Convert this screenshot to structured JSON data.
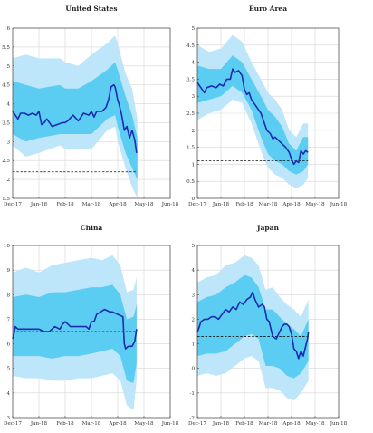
{
  "chart_data": [
    {
      "type": "line",
      "title": "United States",
      "x_ticks": [
        "Dec-17",
        "Jan-18",
        "Feb-18",
        "Mar-18",
        "Apr-18",
        "May-18",
        "Jun-18"
      ],
      "y_ticks": [
        "1.5",
        "2",
        "2.5",
        "3",
        "3.5",
        "4",
        "4.5",
        "5",
        "5.5",
        "6"
      ],
      "ylim": [
        1.5,
        6
      ],
      "grid": true,
      "reference_value": 2.2,
      "bands": {
        "x": [
          0,
          0.5,
          1.0,
          1.8,
          2.0,
          2.5,
          3.0,
          3.6,
          3.9,
          4.0,
          4.3,
          4.55,
          4.75
        ],
        "outer": [
          [
            2.9,
            5.2
          ],
          [
            2.6,
            5.3
          ],
          [
            2.7,
            5.2
          ],
          [
            2.9,
            5.2
          ],
          [
            2.8,
            5.1
          ],
          [
            2.8,
            5.0
          ],
          [
            2.8,
            5.3
          ],
          [
            3.3,
            5.6
          ],
          [
            3.4,
            5.8
          ],
          [
            3.0,
            5.6
          ],
          [
            2.3,
            4.8
          ],
          [
            1.8,
            4.4
          ],
          [
            1.5,
            3.6
          ]
        ],
        "inner": [
          [
            3.2,
            4.6
          ],
          [
            3.0,
            4.5
          ],
          [
            3.1,
            4.4
          ],
          [
            3.2,
            4.5
          ],
          [
            3.2,
            4.4
          ],
          [
            3.2,
            4.4
          ],
          [
            3.2,
            4.6
          ],
          [
            3.6,
            4.9
          ],
          [
            3.7,
            5.1
          ],
          [
            3.4,
            4.9
          ],
          [
            2.7,
            4.2
          ],
          [
            2.3,
            3.7
          ],
          [
            2.0,
            3.1
          ]
        ]
      },
      "series": [
        {
          "x": [
            0,
            0.1,
            0.2,
            0.3,
            0.45,
            0.6,
            0.75,
            0.9,
            1.0,
            1.1,
            1.2,
            1.3,
            1.5,
            1.7,
            1.9,
            2.0,
            2.1,
            2.3,
            2.5,
            2.7,
            2.9,
            3.0,
            3.1,
            3.2,
            3.4,
            3.55,
            3.65,
            3.75,
            3.85,
            3.9,
            4.0,
            4.05,
            4.15,
            4.25,
            4.35,
            4.45,
            4.55,
            4.65,
            4.72
          ],
          "y": [
            3.8,
            3.7,
            3.6,
            3.75,
            3.75,
            3.7,
            3.75,
            3.7,
            3.8,
            3.45,
            3.5,
            3.6,
            3.4,
            3.45,
            3.5,
            3.5,
            3.55,
            3.7,
            3.55,
            3.75,
            3.7,
            3.8,
            3.65,
            3.8,
            3.8,
            3.9,
            4.1,
            4.45,
            4.5,
            4.45,
            4.1,
            4.0,
            3.7,
            3.3,
            3.4,
            3.1,
            3.3,
            3.05,
            2.7
          ]
        }
      ]
    },
    {
      "type": "line",
      "title": "Euro Area",
      "x_ticks": [
        "Dec-17",
        "Jan-18",
        "Feb-18",
        "Mar-18",
        "Apr-18",
        "May-18",
        "Jun-18"
      ],
      "y_ticks": [
        "0",
        "0.5",
        "1",
        "1.5",
        "2",
        "2.5",
        "3",
        "3.5",
        "4",
        "4.5",
        "5"
      ],
      "ylim": [
        0,
        5
      ],
      "grid": true,
      "reference_value": 1.1,
      "bands": {
        "x": [
          0,
          0.5,
          1.0,
          1.5,
          1.9,
          2.3,
          2.7,
          3.0,
          3.3,
          3.6,
          3.9,
          4.2,
          4.5,
          4.7
        ],
        "outer": [
          [
            2.3,
            4.5
          ],
          [
            2.5,
            4.3
          ],
          [
            2.6,
            4.4
          ],
          [
            2.9,
            4.8
          ],
          [
            2.8,
            4.6
          ],
          [
            2.2,
            4.0
          ],
          [
            1.4,
            3.5
          ],
          [
            0.9,
            3.1
          ],
          [
            0.7,
            2.9
          ],
          [
            0.6,
            2.6
          ],
          [
            0.4,
            2.0
          ],
          [
            0.3,
            1.8
          ],
          [
            0.4,
            2.2
          ],
          [
            0.6,
            2.2
          ]
        ],
        "inner": [
          [
            2.8,
            3.9
          ],
          [
            2.9,
            3.8
          ],
          [
            3.0,
            3.8
          ],
          [
            3.3,
            4.2
          ],
          [
            3.1,
            4.0
          ],
          [
            2.6,
            3.5
          ],
          [
            1.8,
            3.0
          ],
          [
            1.3,
            2.6
          ],
          [
            1.1,
            2.4
          ],
          [
            1.0,
            2.1
          ],
          [
            0.8,
            1.6
          ],
          [
            0.7,
            1.4
          ],
          [
            0.8,
            1.8
          ],
          [
            1.0,
            1.8
          ]
        ]
      },
      "series": [
        {
          "x": [
            0,
            0.1,
            0.2,
            0.3,
            0.4,
            0.6,
            0.8,
            0.95,
            1.1,
            1.25,
            1.4,
            1.5,
            1.6,
            1.75,
            1.9,
            2.0,
            2.1,
            2.2,
            2.3,
            2.45,
            2.6,
            2.7,
            2.8,
            2.95,
            3.1,
            3.2,
            3.3,
            3.45,
            3.6,
            3.75,
            3.9,
            4.0,
            4.1,
            4.2,
            4.3,
            4.4,
            4.5,
            4.6,
            4.7
          ],
          "y": [
            3.4,
            3.3,
            3.2,
            3.1,
            3.25,
            3.3,
            3.25,
            3.35,
            3.3,
            3.5,
            3.5,
            3.8,
            3.7,
            3.75,
            3.6,
            3.2,
            3.05,
            3.1,
            2.9,
            2.75,
            2.6,
            2.5,
            2.3,
            2.0,
            1.9,
            1.75,
            1.8,
            1.7,
            1.6,
            1.5,
            1.35,
            1.15,
            1.0,
            1.1,
            1.05,
            1.4,
            1.3,
            1.4,
            1.35
          ]
        }
      ]
    },
    {
      "type": "line",
      "title": "China",
      "x_ticks": [
        "Dec-17",
        "Jan-18",
        "Feb-18",
        "Mar-18",
        "Apr-18",
        "May-18",
        "Jun-18"
      ],
      "y_ticks": [
        "3",
        "4",
        "5",
        "6",
        "7",
        "8",
        "9",
        "10"
      ],
      "ylim": [
        3,
        10
      ],
      "grid": true,
      "reference_value": 6.5,
      "bands": {
        "x": [
          0,
          0.5,
          1.0,
          1.5,
          2.0,
          2.5,
          3.0,
          3.4,
          3.8,
          4.1,
          4.35,
          4.6,
          4.72
        ],
        "outer": [
          [
            4.7,
            8.9
          ],
          [
            4.6,
            9.1
          ],
          [
            4.6,
            8.9
          ],
          [
            4.5,
            9.2
          ],
          [
            4.5,
            9.3
          ],
          [
            4.6,
            9.4
          ],
          [
            4.6,
            9.5
          ],
          [
            4.7,
            9.4
          ],
          [
            4.8,
            9.6
          ],
          [
            4.5,
            9.2
          ],
          [
            3.5,
            8.1
          ],
          [
            3.3,
            8.2
          ],
          [
            4.5,
            8.7
          ]
        ],
        "inner": [
          [
            5.5,
            7.9
          ],
          [
            5.5,
            8.0
          ],
          [
            5.5,
            7.9
          ],
          [
            5.4,
            8.1
          ],
          [
            5.5,
            8.1
          ],
          [
            5.5,
            8.2
          ],
          [
            5.6,
            8.3
          ],
          [
            5.7,
            8.3
          ],
          [
            5.8,
            8.4
          ],
          [
            5.5,
            8.0
          ],
          [
            4.5,
            7.0
          ],
          [
            4.4,
            7.1
          ],
          [
            5.2,
            7.6
          ]
        ]
      },
      "series": [
        {
          "x": [
            0,
            0.05,
            0.1,
            0.2,
            0.4,
            0.6,
            0.8,
            1.0,
            1.2,
            1.4,
            1.6,
            1.8,
            1.9,
            2.0,
            2.2,
            2.4,
            2.6,
            2.8,
            2.9,
            3.0,
            3.1,
            3.2,
            3.35,
            3.5,
            3.6,
            3.7,
            3.8,
            4.0,
            4.2,
            4.25,
            4.3,
            4.4,
            4.55,
            4.65,
            4.72
          ],
          "y": [
            6.2,
            6.4,
            6.7,
            6.6,
            6.6,
            6.6,
            6.6,
            6.6,
            6.5,
            6.5,
            6.7,
            6.6,
            6.8,
            6.9,
            6.7,
            6.7,
            6.7,
            6.7,
            6.6,
            6.9,
            6.9,
            7.2,
            7.3,
            7.4,
            7.35,
            7.3,
            7.3,
            7.2,
            7.1,
            6.0,
            5.8,
            5.9,
            5.9,
            6.1,
            6.6
          ]
        }
      ]
    },
    {
      "type": "line",
      "title": "Japan",
      "x_ticks": [
        "Dec-17",
        "Jan-18",
        "Feb-18",
        "Mar-18",
        "Apr-18",
        "May-18",
        "Jun-18"
      ],
      "y_ticks": [
        "-2",
        "-1",
        "0",
        "1",
        "2",
        "3",
        "4",
        "5"
      ],
      "ylim": [
        -2,
        5
      ],
      "grid": true,
      "reference_value": 1.3,
      "bands": {
        "x": [
          0,
          0.4,
          0.8,
          1.2,
          1.6,
          2.0,
          2.3,
          2.6,
          2.9,
          3.2,
          3.5,
          3.8,
          4.1,
          4.4,
          4.72
        ],
        "outer": [
          [
            -0.3,
            3.5
          ],
          [
            -0.2,
            3.7
          ],
          [
            -0.3,
            3.8
          ],
          [
            -0.2,
            4.2
          ],
          [
            0.1,
            4.3
          ],
          [
            0.4,
            4.6
          ],
          [
            0.5,
            4.5
          ],
          [
            0.3,
            4.2
          ],
          [
            -0.8,
            3.2
          ],
          [
            -0.8,
            3.3
          ],
          [
            -0.9,
            2.9
          ],
          [
            -1.2,
            2.6
          ],
          [
            -1.3,
            2.4
          ],
          [
            -1.0,
            2.1
          ],
          [
            -0.5,
            2.8
          ]
        ],
        "inner": [
          [
            0.5,
            2.7
          ],
          [
            0.6,
            2.9
          ],
          [
            0.6,
            3.0
          ],
          [
            0.7,
            3.3
          ],
          [
            1.0,
            3.5
          ],
          [
            1.3,
            3.8
          ],
          [
            1.4,
            3.7
          ],
          [
            1.2,
            3.3
          ],
          [
            0.1,
            2.4
          ],
          [
            0.1,
            2.4
          ],
          [
            0.0,
            2.1
          ],
          [
            -0.3,
            1.8
          ],
          [
            -0.4,
            1.6
          ],
          [
            -0.2,
            1.3
          ],
          [
            0.3,
            2.0
          ]
        ]
      },
      "series": [
        {
          "x": [
            0,
            0.05,
            0.15,
            0.3,
            0.45,
            0.6,
            0.75,
            0.9,
            1.05,
            1.2,
            1.35,
            1.5,
            1.65,
            1.8,
            1.95,
            2.1,
            2.25,
            2.35,
            2.45,
            2.6,
            2.75,
            2.85,
            2.95,
            3.05,
            3.2,
            3.35,
            3.5,
            3.6,
            3.7,
            3.8,
            3.9,
            4.0,
            4.1,
            4.2,
            4.3,
            4.4,
            4.5,
            4.6,
            4.68,
            4.72
          ],
          "y": [
            1.5,
            1.6,
            1.9,
            2.0,
            2.0,
            2.1,
            2.1,
            2.0,
            2.2,
            2.4,
            2.3,
            2.5,
            2.4,
            2.7,
            2.6,
            2.8,
            2.9,
            3.1,
            2.8,
            2.5,
            2.6,
            2.5,
            2.0,
            1.9,
            1.3,
            1.2,
            1.5,
            1.7,
            1.8,
            1.8,
            1.7,
            1.4,
            0.8,
            0.7,
            0.4,
            0.7,
            0.5,
            0.9,
            1.2,
            1.5
          ]
        }
      ]
    }
  ],
  "colors": {
    "outer_band": "#bde6fa",
    "inner_band": "#5ccdf2",
    "line": "#1b2bb0",
    "reference": "#111111",
    "grid": "#d6d6d6",
    "axis": "#444444"
  }
}
